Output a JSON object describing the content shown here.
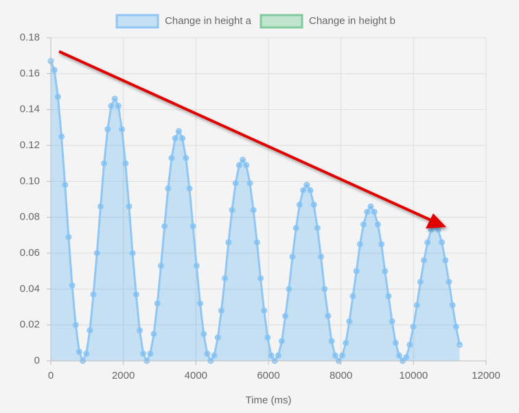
{
  "chart_data": {
    "type": "line",
    "x_label": "Time (ms)",
    "legend": "top",
    "grid": true,
    "fill": true,
    "xlim": [
      0,
      12000
    ],
    "xticks": [
      0,
      2000,
      4000,
      6000,
      8000,
      10000,
      12000
    ],
    "ylim": [
      0,
      0.18
    ],
    "yticks": [
      0,
      0.02,
      0.04,
      0.06,
      0.08,
      {
        "value": 0.1,
        "label": "0.10"
      },
      0.12,
      0.14,
      0.16,
      0.18
    ],
    "x": [
      0,
      98,
      196,
      294,
      392,
      490,
      588,
      686,
      784,
      882,
      980,
      1078,
      1176,
      1274,
      1372,
      1470,
      1568,
      1666,
      1764,
      1862,
      1960,
      2058,
      2156,
      2254,
      2352,
      2450,
      2548,
      2646,
      2744,
      2842,
      2940,
      3038,
      3136,
      3234,
      3332,
      3430,
      3528,
      3626,
      3724,
      3822,
      3920,
      4018,
      4116,
      4214,
      4312,
      4410,
      4508,
      4606,
      4704,
      4802,
      4900,
      4998,
      5096,
      5194,
      5292,
      5390,
      5488,
      5586,
      5684,
      5782,
      5880,
      5978,
      6076,
      6174,
      6272,
      6370,
      6468,
      6566,
      6664,
      6762,
      6860,
      6958,
      7056,
      7154,
      7252,
      7350,
      7448,
      7546,
      7644,
      7742,
      7840,
      7938,
      8036,
      8134,
      8232,
      8330,
      8428,
      8526,
      8624,
      8722,
      8820,
      8918,
      9016,
      9114,
      9212,
      9310,
      9408,
      9506,
      9604,
      9702,
      9800,
      9898,
      9996,
      10094,
      10192,
      10290,
      10388,
      10486,
      10584,
      10682,
      10780,
      10878,
      10976,
      11074,
      11172,
      11270
    ],
    "series": [
      {
        "name": "Change in height a",
        "color": "#8fc6f3",
        "fill_color": "rgba(54,162,235,0.25)",
        "values": [
          0.167,
          0.162,
          0.147,
          0.125,
          0.098,
          0.069,
          0.042,
          0.02,
          0.005,
          0,
          0.004,
          0.017,
          0.037,
          0.06,
          0.086,
          0.11,
          0.129,
          0.142,
          0.146,
          0.142,
          0.129,
          0.11,
          0.086,
          0.06,
          0.037,
          0.017,
          0.004,
          0,
          0.004,
          0.015,
          0.032,
          0.053,
          0.075,
          0.096,
          0.113,
          0.124,
          0.128,
          0.124,
          0.113,
          0.096,
          0.075,
          0.053,
          0.032,
          0.015,
          0.004,
          0,
          0.003,
          0.013,
          0.028,
          0.046,
          0.066,
          0.084,
          0.099,
          0.109,
          0.112,
          0.109,
          0.099,
          0.084,
          0.066,
          0.046,
          0.028,
          0.013,
          0.003,
          0,
          0.003,
          0.011,
          0.025,
          0.04,
          0.058,
          0.074,
          0.087,
          0.095,
          0.098,
          0.095,
          0.087,
          0.074,
          0.058,
          0.04,
          0.025,
          0.011,
          0.003,
          0,
          0.003,
          0.01,
          0.022,
          0.036,
          0.05,
          0.065,
          0.076,
          0.083,
          0.086,
          0.083,
          0.076,
          0.065,
          0.05,
          0.036,
          0.022,
          0.01,
          0.003,
          0,
          0.002,
          0.009,
          0.019,
          0.031,
          0.044,
          0.056,
          0.066,
          0.073,
          0.075,
          0.073,
          0.066,
          0.056,
          0.044,
          0.031,
          0.019,
          0.009
        ]
      },
      {
        "name": "Change in height b",
        "color": "#7fc99c",
        "fill_color": "rgba(75,192,120,0.3)",
        "values": [
          null,
          null,
          null,
          null,
          null,
          null,
          null,
          null,
          null,
          null,
          null,
          null,
          null,
          null,
          null,
          null,
          null,
          null,
          null,
          null,
          null,
          null,
          null,
          null,
          null,
          null,
          null,
          null,
          null,
          null,
          null,
          null,
          null,
          null,
          null,
          null,
          null,
          null,
          null,
          null,
          null,
          null,
          null,
          null,
          null,
          null,
          null,
          null,
          null,
          null,
          null,
          null,
          null,
          null,
          null,
          null,
          null,
          null,
          null,
          null,
          null,
          null,
          null,
          null,
          null,
          null,
          null,
          null,
          null,
          null,
          null,
          null,
          null,
          null,
          null,
          null,
          null,
          null,
          null,
          null,
          null,
          null,
          null,
          null,
          null,
          null,
          null,
          null,
          null,
          null,
          null,
          null,
          null,
          null,
          null,
          null,
          null,
          null,
          null,
          null,
          null,
          null,
          null,
          null,
          null,
          null,
          null,
          null,
          null,
          null,
          null,
          null,
          null,
          null,
          null,
          null
        ]
      }
    ]
  }
}
